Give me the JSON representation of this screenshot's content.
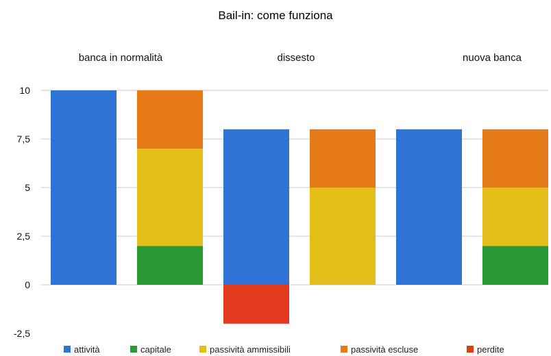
{
  "chart_data": {
    "type": "bar",
    "stacked": true,
    "title": "Bail-in: come funziona",
    "group_labels": [
      "banca in normalità",
      "dissesto",
      "nuova banca"
    ],
    "ylim": [
      -2.5,
      10
    ],
    "y_ticks": [
      "10",
      "7,5",
      "5",
      "2,5",
      "0",
      "-2,5"
    ],
    "grid": true,
    "legend_position": "bottom",
    "series_colors": {
      "attività": "#2f73d6",
      "capitale": "#2a9a35",
      "passività ammissibili": "#e3bd18",
      "passività escluse": "#e67a16",
      "perdite": "#e33a1e"
    },
    "legend": [
      "attività",
      "capitale",
      "passività ammissibili",
      "passività escluse",
      "perdite"
    ],
    "bars": [
      {
        "group": "banca in normalità",
        "segments": [
          {
            "series": "attività",
            "value": 10
          }
        ]
      },
      {
        "group": "banca in normalità",
        "segments": [
          {
            "series": "capitale",
            "value": 2
          },
          {
            "series": "passività ammissibili",
            "value": 5
          },
          {
            "series": "passività escluse",
            "value": 3
          }
        ]
      },
      {
        "group": "dissesto",
        "segments": [
          {
            "series": "attività",
            "value": 8
          },
          {
            "series": "perdite",
            "value": -2
          }
        ]
      },
      {
        "group": "dissesto",
        "segments": [
          {
            "series": "passività ammissibili",
            "value": 5
          },
          {
            "series": "passività escluse",
            "value": 3
          }
        ]
      },
      {
        "group": "nuova banca",
        "segments": [
          {
            "series": "attività",
            "value": 8
          }
        ]
      },
      {
        "group": "nuova banca",
        "segments": [
          {
            "series": "capitale",
            "value": 2
          },
          {
            "series": "passività ammissibili",
            "value": 3
          },
          {
            "series": "passività escluse",
            "value": 3
          }
        ]
      }
    ]
  }
}
